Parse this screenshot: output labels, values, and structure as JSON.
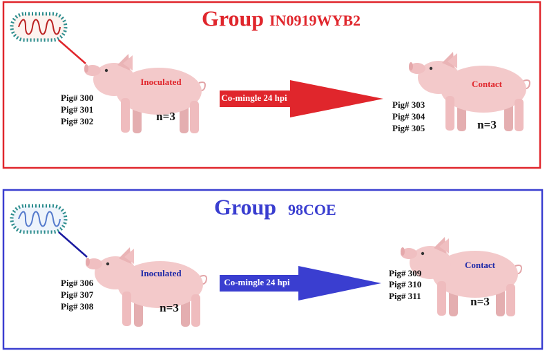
{
  "groups": [
    {
      "title": "Group",
      "strain": "IN0919WYB2",
      "inoculated": {
        "label": "Inoculated",
        "pigs": [
          "Pig# 300",
          "Pig# 301",
          "Pig# 302"
        ],
        "n": "n=3"
      },
      "arrow": "Co-mingle 24 hpi",
      "contact": {
        "label": "Contact",
        "pigs": [
          "Pig# 303",
          "Pig# 304",
          "Pig# 305"
        ],
        "n": "n=3"
      }
    },
    {
      "title": "Group",
      "strain": "98COE",
      "inoculated": {
        "label": "Inoculated",
        "pigs": [
          "Pig# 306",
          "Pig# 307",
          "Pig# 308"
        ],
        "n": "n=3"
      },
      "arrow": "Co-mingle 24 hpi",
      "contact": {
        "label": "Contact",
        "pigs": [
          "Pig# 309",
          "Pig# 310",
          "Pig# 311"
        ],
        "n": "n=3"
      }
    }
  ]
}
